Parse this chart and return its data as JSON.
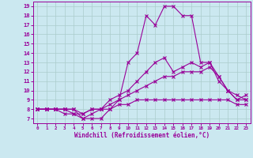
{
  "xlabel": "Windchill (Refroidissement éolien,°C)",
  "background_color": "#cbe8f0",
  "line_color": "#990099",
  "grid_color": "#aacccc",
  "xlim": [
    -0.5,
    23.5
  ],
  "ylim": [
    6.5,
    19.5
  ],
  "xticks": [
    0,
    1,
    2,
    3,
    4,
    5,
    6,
    7,
    8,
    9,
    10,
    11,
    12,
    13,
    14,
    15,
    16,
    17,
    18,
    19,
    20,
    21,
    22,
    23
  ],
  "yticks": [
    7,
    8,
    9,
    10,
    11,
    12,
    13,
    14,
    15,
    16,
    17,
    18,
    19
  ],
  "line1_x": [
    0,
    1,
    2,
    3,
    4,
    5,
    6,
    7,
    8,
    9,
    10,
    11,
    12,
    13,
    14,
    15,
    16,
    17,
    18,
    19,
    20,
    21,
    22,
    23
  ],
  "line1_y": [
    8,
    8,
    8,
    8,
    8,
    7,
    7,
    7,
    8,
    9,
    13,
    14,
    18,
    17,
    19,
    19,
    18,
    18,
    13,
    13,
    11,
    10,
    9,
    9
  ],
  "line2_x": [
    0,
    1,
    2,
    3,
    4,
    5,
    6,
    7,
    8,
    9,
    10,
    11,
    12,
    13,
    14,
    15,
    16,
    17,
    18,
    19,
    20,
    21,
    22,
    23
  ],
  "line2_y": [
    8,
    8,
    8,
    8,
    7.5,
    7,
    7.5,
    8,
    9,
    9.5,
    10,
    11,
    12,
    13,
    13.5,
    12,
    12.5,
    13,
    12.5,
    13,
    11.5,
    10,
    9,
    9.5
  ],
  "line3_x": [
    0,
    1,
    2,
    3,
    4,
    5,
    6,
    7,
    8,
    9,
    10,
    11,
    12,
    13,
    14,
    15,
    16,
    17,
    18,
    19,
    20,
    21,
    22,
    23
  ],
  "line3_y": [
    8,
    8,
    8,
    8,
    8,
    7.5,
    8,
    8,
    8.5,
    9,
    9.5,
    10,
    10.5,
    11,
    11.5,
    11.5,
    12,
    12,
    12,
    12.5,
    11.5,
    10,
    9.5,
    9
  ],
  "line4_x": [
    0,
    1,
    2,
    3,
    4,
    5,
    6,
    7,
    8,
    9,
    10,
    11,
    12,
    13,
    14,
    15,
    16,
    17,
    18,
    19,
    20,
    21,
    22,
    23
  ],
  "line4_y": [
    8,
    8,
    8,
    7.5,
    7.5,
    7.5,
    8,
    8,
    8,
    8.5,
    8.5,
    9,
    9,
    9,
    9,
    9,
    9,
    9,
    9,
    9,
    9,
    9,
    8.5,
    8.5
  ]
}
